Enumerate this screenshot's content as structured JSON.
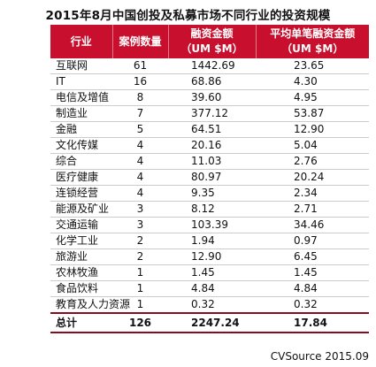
{
  "title": "2015年8月中国创投及私募市场不同行业的投资规模",
  "header": {
    "industry": "行业",
    "case_count": "案例数量",
    "financing_amount": "融资金额",
    "financing_unit": "（UM $M）",
    "avg_amount": "平均单笔融资金额",
    "avg_unit": "（UM $M）"
  },
  "rows": [
    {
      "industry": "互联网",
      "cases": "61",
      "amount": "1442.69",
      "avg": "23.65"
    },
    {
      "industry": "IT",
      "cases": "16",
      "amount": "68.86",
      "avg": "4.30"
    },
    {
      "industry": "电信及增值",
      "cases": "8",
      "amount": "39.60",
      "avg": "4.95"
    },
    {
      "industry": "制造业",
      "cases": "7",
      "amount": "377.12",
      "avg": "53.87"
    },
    {
      "industry": "金融",
      "cases": "5",
      "amount": "64.51",
      "avg": "12.90"
    },
    {
      "industry": "文化传媒",
      "cases": "4",
      "amount": "20.16",
      "avg": "5.04"
    },
    {
      "industry": "综合",
      "cases": "4",
      "amount": "11.03",
      "avg": "2.76"
    },
    {
      "industry": "医疗健康",
      "cases": "4",
      "amount": "80.97",
      "avg": "20.24"
    },
    {
      "industry": "连锁经营",
      "cases": "4",
      "amount": "9.35",
      "avg": "2.34"
    },
    {
      "industry": "能源及矿业",
      "cases": "3",
      "amount": "8.12",
      "avg": "2.71"
    },
    {
      "industry": "交通运输",
      "cases": "3",
      "amount": "103.39",
      "avg": "34.46"
    },
    {
      "industry": "化学工业",
      "cases": "2",
      "amount": "1.94",
      "avg": "0.97"
    },
    {
      "industry": "旅游业",
      "cases": "2",
      "amount": "12.90",
      "avg": "6.45"
    },
    {
      "industry": "农林牧渔",
      "cases": "1",
      "amount": "1.45",
      "avg": "1.45"
    },
    {
      "industry": "食品饮料",
      "cases": "1",
      "amount": "4.84",
      "avg": "4.84"
    },
    {
      "industry": "教育及人力资源",
      "cases": "1",
      "amount": "0.32",
      "avg": "0.32"
    }
  ],
  "total": {
    "industry": "总计",
    "cases": "126",
    "amount": "2247.24",
    "avg": "17.84"
  },
  "source": "CVSource 2015.09",
  "colors": {
    "header_bg": "#c8102e",
    "total_border": "#8a0a1e"
  }
}
